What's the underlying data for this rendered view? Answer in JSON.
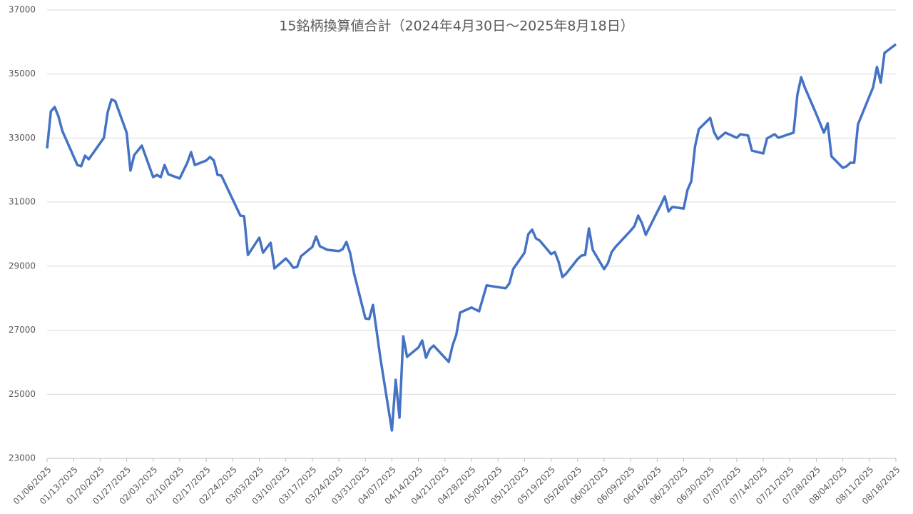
{
  "chart_data": {
    "type": "line",
    "title": "15銘柄換算値合計（2024年4月30日～2025年8月18日）",
    "x": [
      "2025-01-06",
      "2025-01-07",
      "2025-01-08",
      "2025-01-09",
      "2025-01-10",
      "2025-01-14",
      "2025-01-15",
      "2025-01-16",
      "2025-01-17",
      "2025-01-21",
      "2025-01-22",
      "2025-01-23",
      "2025-01-24",
      "2025-01-27",
      "2025-01-28",
      "2025-01-29",
      "2025-01-31",
      "2025-02-03",
      "2025-02-04",
      "2025-02-05",
      "2025-02-06",
      "2025-02-07",
      "2025-02-10",
      "2025-02-12",
      "2025-02-13",
      "2025-02-14",
      "2025-02-17",
      "2025-02-18",
      "2025-02-19",
      "2025-02-20",
      "2025-02-21",
      "2025-02-26",
      "2025-02-27",
      "2025-02-28",
      "2025-03-03",
      "2025-03-04",
      "2025-03-05",
      "2025-03-06",
      "2025-03-07",
      "2025-03-10",
      "2025-03-11",
      "2025-03-12",
      "2025-03-13",
      "2025-03-14",
      "2025-03-17",
      "2025-03-18",
      "2025-03-19",
      "2025-03-21",
      "2025-03-24",
      "2025-03-25",
      "2025-03-26",
      "2025-03-27",
      "2025-03-28",
      "2025-03-31",
      "2025-04-01",
      "2025-04-02",
      "2025-04-04",
      "2025-04-07",
      "2025-04-08",
      "2025-04-09",
      "2025-04-10",
      "2025-04-11",
      "2025-04-14",
      "2025-04-15",
      "2025-04-16",
      "2025-04-17",
      "2025-04-18",
      "2025-04-22",
      "2025-04-23",
      "2025-04-24",
      "2025-04-25",
      "2025-04-28",
      "2025-04-30",
      "2025-05-02",
      "2025-05-07",
      "2025-05-08",
      "2025-05-09",
      "2025-05-12",
      "2025-05-13",
      "2025-05-14",
      "2025-05-15",
      "2025-05-16",
      "2025-05-19",
      "2025-05-20",
      "2025-05-21",
      "2025-05-22",
      "2025-05-23",
      "2025-05-26",
      "2025-05-27",
      "2025-05-28",
      "2025-05-29",
      "2025-05-30",
      "2025-06-02",
      "2025-06-03",
      "2025-06-04",
      "2025-06-05",
      "2025-06-09",
      "2025-06-10",
      "2025-06-11",
      "2025-06-12",
      "2025-06-13",
      "2025-06-16",
      "2025-06-17",
      "2025-06-18",
      "2025-06-19",
      "2025-06-20",
      "2025-06-23",
      "2025-06-24",
      "2025-06-25",
      "2025-06-26",
      "2025-06-27",
      "2025-06-30",
      "2025-07-01",
      "2025-07-02",
      "2025-07-04",
      "2025-07-07",
      "2025-07-08",
      "2025-07-10",
      "2025-07-11",
      "2025-07-14",
      "2025-07-15",
      "2025-07-17",
      "2025-07-18",
      "2025-07-22",
      "2025-07-23",
      "2025-07-24",
      "2025-07-25",
      "2025-07-28",
      "2025-07-30",
      "2025-07-31",
      "2025-08-01",
      "2025-08-04",
      "2025-08-05",
      "2025-08-06",
      "2025-08-07",
      "2025-08-08",
      "2025-08-12",
      "2025-08-13",
      "2025-08-14",
      "2025-08-15",
      "2025-08-18"
    ],
    "series": [
      {
        "color": "#4472c4",
        "values": [
          32680,
          33835,
          33970,
          33680,
          33230,
          32160,
          32120,
          32450,
          32340,
          33010,
          33810,
          34210,
          34150,
          33170,
          31985,
          32470,
          32765,
          31780,
          31850,
          31780,
          32160,
          31870,
          31740,
          32230,
          32560,
          32160,
          32300,
          32410,
          32300,
          31850,
          31830,
          30580,
          30560,
          29350,
          29890,
          29420,
          29580,
          29730,
          28930,
          29240,
          29110,
          28950,
          28980,
          29310,
          29600,
          29930,
          29620,
          29510,
          29470,
          29530,
          29760,
          29400,
          28780,
          27370,
          27350,
          27790,
          26100,
          23870,
          25450,
          24270,
          26810,
          26170,
          26460,
          26680,
          26140,
          26410,
          26520,
          26010,
          26520,
          26860,
          27550,
          27710,
          27590,
          28400,
          28310,
          28460,
          28910,
          29420,
          30000,
          30140,
          29870,
          29800,
          29380,
          29440,
          29130,
          28660,
          28770,
          29220,
          29330,
          29350,
          30180,
          29510,
          28910,
          29090,
          29440,
          29600,
          30110,
          30250,
          30580,
          30340,
          29980,
          30690,
          30920,
          31180,
          30710,
          30850,
          30800,
          31380,
          31650,
          32740,
          33280,
          33630,
          33190,
          32970,
          33170,
          33010,
          33120,
          33080,
          32610,
          32520,
          32990,
          33120,
          33010,
          33170,
          34350,
          34900,
          34570,
          33750,
          33170,
          33460,
          32430,
          32070,
          32120,
          32230,
          32230,
          33430,
          34590,
          35220,
          34730,
          35660,
          35930
        ]
      }
    ],
    "xlim": [
      "2025-01-06",
      "2025-08-18"
    ],
    "xticks": [
      {
        "value": "2025-01-06",
        "label": "01/06/2025"
      },
      {
        "value": "2025-01-13",
        "label": "01/13/2025"
      },
      {
        "value": "2025-01-20",
        "label": "01/20/2025"
      },
      {
        "value": "2025-01-27",
        "label": "01/27/2025"
      },
      {
        "value": "2025-02-03",
        "label": "02/03/2025"
      },
      {
        "value": "2025-02-10",
        "label": "02/10/2025"
      },
      {
        "value": "2025-02-17",
        "label": "02/17/2025"
      },
      {
        "value": "2025-02-24",
        "label": "02/24/2025"
      },
      {
        "value": "2025-03-03",
        "label": "03/03/2025"
      },
      {
        "value": "2025-03-10",
        "label": "03/10/2025"
      },
      {
        "value": "2025-03-17",
        "label": "03/17/2025"
      },
      {
        "value": "2025-03-24",
        "label": "03/24/2025"
      },
      {
        "value": "2025-03-31",
        "label": "03/31/2025"
      },
      {
        "value": "2025-04-07",
        "label": "04/07/2025"
      },
      {
        "value": "2025-04-14",
        "label": "04/14/2025"
      },
      {
        "value": "2025-04-21",
        "label": "04/21/2025"
      },
      {
        "value": "2025-04-28",
        "label": "04/28/2025"
      },
      {
        "value": "2025-05-05",
        "label": "05/05/2025"
      },
      {
        "value": "2025-05-12",
        "label": "05/12/2025"
      },
      {
        "value": "2025-05-19",
        "label": "05/19/2025"
      },
      {
        "value": "2025-05-26",
        "label": "05/26/2025"
      },
      {
        "value": "2025-06-02",
        "label": "06/02/2025"
      },
      {
        "value": "2025-06-09",
        "label": "06/09/2025"
      },
      {
        "value": "2025-06-16",
        "label": "06/16/2025"
      },
      {
        "value": "2025-06-23",
        "label": "06/23/2025"
      },
      {
        "value": "2025-06-30",
        "label": "06/30/2025"
      },
      {
        "value": "2025-07-07",
        "label": "07/07/2025"
      },
      {
        "value": "2025-07-14",
        "label": "07/14/2025"
      },
      {
        "value": "2025-07-21",
        "label": "07/21/2025"
      },
      {
        "value": "2025-07-28",
        "label": "07/28/2025"
      },
      {
        "value": "2025-08-04",
        "label": "08/04/2025"
      },
      {
        "value": "2025-08-11",
        "label": "08/11/2025"
      },
      {
        "value": "2025-08-18",
        "label": "08/18/2025"
      }
    ],
    "ylim": [
      23000,
      37000
    ],
    "yticks": [
      23000,
      25000,
      27000,
      29000,
      31000,
      33000,
      35000,
      37000
    ],
    "grid": true
  }
}
